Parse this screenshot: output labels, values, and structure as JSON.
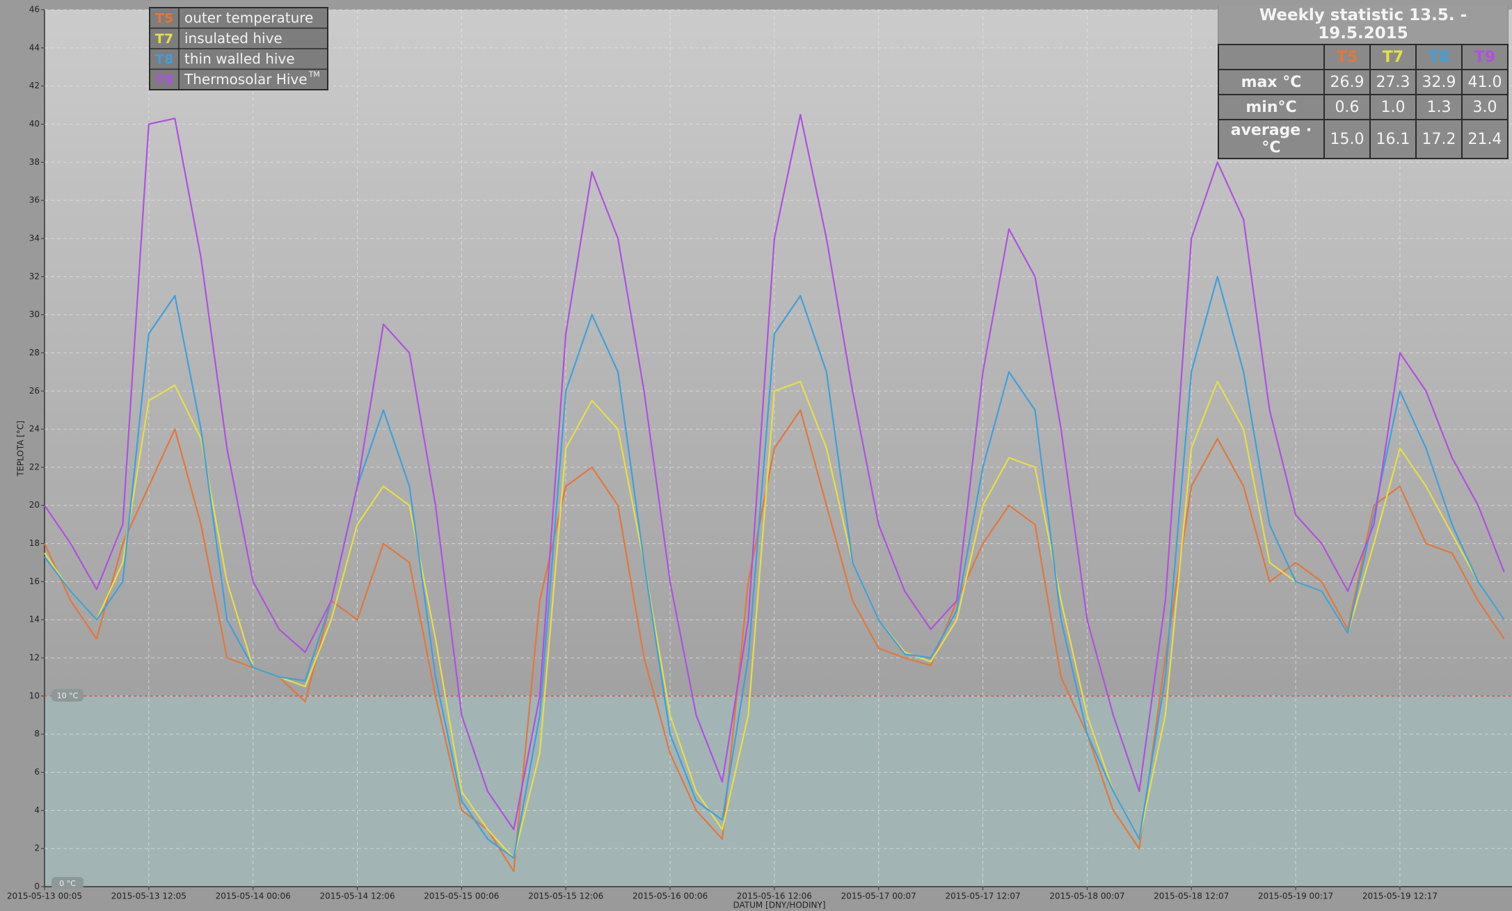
{
  "chart_data": {
    "type": "line",
    "y_label": "TEPLOTA [°C]",
    "x_label": "DATUM [DNY/HODINY]",
    "categories": [
      "2015-05-13 00:05",
      null,
      null,
      null,
      "2015-05-13 12:05",
      null,
      null,
      null,
      "2015-05-14 00:06",
      null,
      null,
      null,
      "2015-05-14 12:06",
      null,
      null,
      null,
      "2015-05-15 00:06",
      null,
      null,
      null,
      "2015-05-15 12:06",
      null,
      null,
      null,
      "2015-05-16 00:06",
      null,
      null,
      null,
      "2015-05-16 12:06",
      null,
      null,
      null,
      "2015-05-17 00:07",
      null,
      null,
      null,
      "2015-05-17 12:07",
      null,
      null,
      null,
      "2015-05-18 00:07",
      null,
      null,
      null,
      "2015-05-18 12:07",
      null,
      null,
      null,
      "2015-05-19 00:17",
      null,
      null,
      null,
      "2015-05-19 12:17",
      null,
      null,
      null,
      null
    ],
    "series": [
      {
        "code": "T5",
        "name": "outer temperature",
        "color": "#e2773b",
        "values": [
          18,
          15,
          13,
          18,
          21,
          24,
          19,
          12,
          11.5,
          11,
          9.7,
          15,
          14,
          18,
          17,
          10,
          4,
          3,
          0.8,
          15,
          21,
          22,
          20,
          12,
          7,
          4,
          2.5,
          16,
          23,
          25,
          20,
          15,
          12.5,
          12,
          11.6,
          15,
          18,
          20,
          19,
          11,
          8,
          4,
          2,
          12,
          21,
          23.5,
          21,
          16,
          17,
          16,
          13.5,
          20,
          21,
          18,
          17.5,
          15,
          13
        ]
      },
      {
        "code": "T7",
        "name": "insulated hive",
        "color": "#e6de48",
        "values": [
          17.5,
          15.5,
          14,
          17,
          25.5,
          26.3,
          23.5,
          16,
          11.5,
          11,
          10.5,
          14,
          19,
          21,
          20,
          13,
          5,
          3,
          1.5,
          7,
          23,
          25.5,
          24,
          17,
          9,
          5,
          3,
          9,
          26,
          26.5,
          23,
          17,
          14,
          12.3,
          11.8,
          14,
          20,
          22.5,
          22,
          15,
          9,
          5,
          2.5,
          9,
          23,
          26.5,
          24,
          17,
          16,
          15.5,
          13.3,
          18,
          23,
          21,
          18.5,
          16,
          14
        ]
      },
      {
        "code": "T8",
        "name": "thin walled hive",
        "color": "#3ea0dc",
        "values": [
          17.3,
          15.5,
          14,
          16,
          29,
          31,
          24,
          14,
          11.5,
          11,
          10.8,
          15,
          21,
          25,
          21,
          11,
          4.5,
          2.5,
          1.5,
          9,
          26,
          30,
          27,
          17,
          8,
          4.5,
          3.5,
          12,
          29,
          31,
          27,
          17,
          14,
          12.2,
          12,
          14.5,
          22,
          27,
          25,
          14,
          8,
          5,
          2.5,
          11,
          27,
          32,
          27,
          19,
          16,
          15.5,
          13.3,
          19.5,
          26,
          23,
          19,
          16,
          14
        ]
      },
      {
        "code": "T9",
        "name": "Thermosolar Hive",
        "trademark": "TM",
        "color": "#b050e0",
        "values": [
          20,
          18,
          15.6,
          19,
          40,
          40.3,
          33,
          23,
          16,
          13.5,
          12.3,
          15,
          21,
          29.5,
          28,
          20,
          9,
          5,
          3,
          10,
          29,
          37.5,
          34,
          26,
          16,
          9,
          5.5,
          14,
          34,
          40.5,
          34,
          26,
          19,
          15.5,
          13.5,
          15,
          27,
          34.5,
          32,
          24,
          14,
          9,
          5,
          15,
          34,
          38,
          35,
          25,
          19.5,
          18,
          15.5,
          19,
          28,
          26,
          22.5,
          20,
          16.5
        ]
      }
    ],
    "ylim": [
      0,
      46
    ],
    "yticks": [
      0,
      2,
      4,
      6,
      8,
      10,
      12,
      14,
      16,
      18,
      20,
      22,
      24,
      26,
      28,
      30,
      32,
      34,
      36,
      38,
      40,
      42,
      44,
      46
    ],
    "grid": true,
    "threshold": {
      "value": 10,
      "label": "10 °C"
    },
    "zero_marker": {
      "value": 0,
      "label": "0 °C"
    }
  },
  "statistics": {
    "title": "Weekly statistic 13.5. - 19.5.2015",
    "columns": [
      "T5",
      "T7",
      "T8",
      "T9"
    ],
    "rows": [
      {
        "label": "max °C",
        "values": [
          "26.9",
          "27.3",
          "32.9",
          "41.0"
        ]
      },
      {
        "label": "min°C",
        "values": [
          "0.6",
          "1.0",
          "1.3",
          "3.0"
        ]
      },
      {
        "label": "average · °C",
        "values": [
          "15.0",
          "16.1",
          "17.2",
          "21.4"
        ]
      }
    ]
  }
}
